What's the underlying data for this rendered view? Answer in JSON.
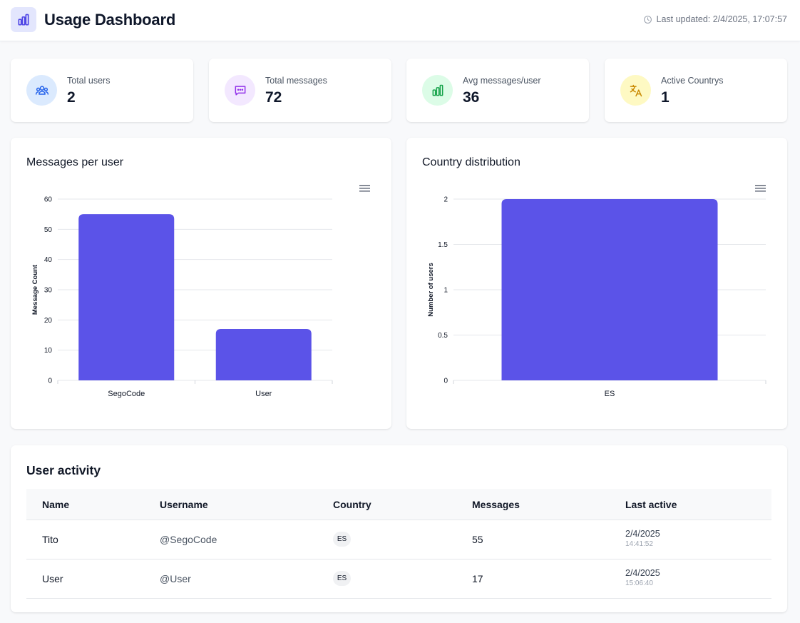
{
  "header": {
    "title": "Usage Dashboard",
    "updated": "Last updated: 2/4/2025, 17:07:57"
  },
  "stats": [
    {
      "label": "Total users",
      "value": "2",
      "icon": "users-icon",
      "bg": "#dbeafe",
      "color": "#2563eb"
    },
    {
      "label": "Total messages",
      "value": "72",
      "icon": "message-icon",
      "bg": "#f3e8ff",
      "color": "#9333ea"
    },
    {
      "label": "Avg messages/user",
      "value": "36",
      "icon": "bar-chart-icon",
      "bg": "#dcfce7",
      "color": "#16a34a"
    },
    {
      "label": "Active Countrys",
      "value": "1",
      "icon": "translate-icon",
      "bg": "#fef9c3",
      "color": "#ca8a04"
    }
  ],
  "charts": {
    "messages": {
      "title": "Messages per user"
    },
    "country": {
      "title": "Country distribution"
    }
  },
  "chart_data": [
    {
      "type": "bar",
      "title": "Messages per user",
      "categories": [
        "SegoCode",
        "User"
      ],
      "values": [
        55,
        17
      ],
      "ylabel": "Message Count",
      "xlabel": "",
      "ylim": [
        0,
        60
      ],
      "yticks": [
        "0",
        "10",
        "20",
        "30",
        "40",
        "50",
        "60"
      ],
      "color": "#5b53e8",
      "grid": true
    },
    {
      "type": "bar",
      "title": "Country distribution",
      "categories": [
        "ES"
      ],
      "values": [
        2
      ],
      "ylabel": "Number of users",
      "xlabel": "",
      "ylim": [
        0,
        2
      ],
      "yticks": [
        "0",
        "0.5",
        "1",
        "1.5",
        "2"
      ],
      "color": "#5b53e8",
      "grid": true
    }
  ],
  "activity": {
    "title": "User activity",
    "columns": [
      "Name",
      "Username",
      "Country",
      "Messages",
      "Last active"
    ],
    "rows": [
      {
        "name": "Tito",
        "username": "@SegoCode",
        "country": "ES",
        "messages": "55",
        "date": "2/4/2025",
        "time": "14:41:52"
      },
      {
        "name": "User",
        "username": "@User",
        "country": "ES",
        "messages": "17",
        "date": "2/4/2025",
        "time": "15:06:40"
      }
    ]
  },
  "colors": {
    "accent": "#5b53e8",
    "logo_bg": "#e3e6fd"
  }
}
